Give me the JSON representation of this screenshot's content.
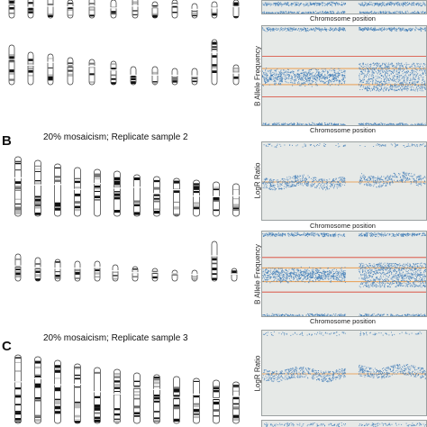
{
  "sections": [
    {
      "letter": "",
      "title": ""
    },
    {
      "letter": "B",
      "title": "20% mosaicism; Replicate sample 2"
    },
    {
      "letter": "C",
      "title": "20% mosaicism; Replicate sample 3"
    }
  ],
  "plots": {
    "x_label": "Chromosome position",
    "baf_label": "B Allele Frequency",
    "logr_label": "LogR Ratio"
  },
  "colors": {
    "dots": "#3a78b5",
    "red_line": "#d9412f",
    "orange_line": "#e8913a",
    "plot_bg": "#e6e9e7",
    "band": "#111111"
  }
}
